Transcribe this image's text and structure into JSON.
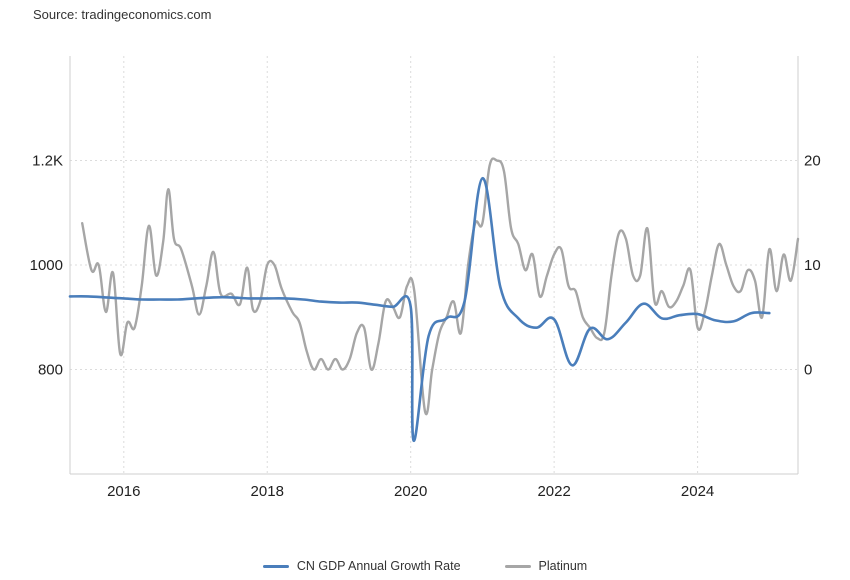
{
  "source": "Source: tradingeconomics.com",
  "colors": {
    "gdp": "#4a7ebb",
    "platinum": "#a6a6a6",
    "grid": "#dcdcdc",
    "axis": "#cfcfcf"
  },
  "chart_data": {
    "type": "line",
    "title": "",
    "legend_position": "bottom",
    "grid": true,
    "x_ticks": [
      "2016",
      "2018",
      "2020",
      "2022",
      "2024"
    ],
    "x_range": [
      2015.25,
      2025.4
    ],
    "left_axis": {
      "ticks": [
        "800",
        "1000",
        "1.2K"
      ],
      "tick_values": [
        800,
        1000,
        1200
      ],
      "range": [
        600,
        1400
      ]
    },
    "right_axis": {
      "ticks": [
        "0",
        "10",
        "20"
      ],
      "tick_values": [
        0,
        10,
        20
      ],
      "range": [
        -10,
        30
      ]
    },
    "series": [
      {
        "name": "CN GDP Annual Growth Rate",
        "axis": "right",
        "color": "#4a7ebb",
        "points": [
          [
            2015.25,
            7.0
          ],
          [
            2015.5,
            7.0
          ],
          [
            2015.75,
            6.9
          ],
          [
            2016.0,
            6.8
          ],
          [
            2016.25,
            6.7
          ],
          [
            2016.5,
            6.7
          ],
          [
            2016.75,
            6.7
          ],
          [
            2017.0,
            6.8
          ],
          [
            2017.25,
            6.9
          ],
          [
            2017.5,
            6.9
          ],
          [
            2017.75,
            6.8
          ],
          [
            2018.0,
            6.8
          ],
          [
            2018.25,
            6.8
          ],
          [
            2018.5,
            6.7
          ],
          [
            2018.75,
            6.5
          ],
          [
            2019.0,
            6.4
          ],
          [
            2019.25,
            6.4
          ],
          [
            2019.5,
            6.2
          ],
          [
            2019.75,
            6.0
          ],
          [
            2020.0,
            6.0
          ],
          [
            2020.04,
            -6.8
          ],
          [
            2020.25,
            3.2
          ],
          [
            2020.5,
            4.9
          ],
          [
            2020.75,
            6.5
          ],
          [
            2021.0,
            18.3
          ],
          [
            2021.25,
            7.9
          ],
          [
            2021.5,
            4.9
          ],
          [
            2021.75,
            4.0
          ],
          [
            2022.0,
            4.8
          ],
          [
            2022.25,
            0.4
          ],
          [
            2022.5,
            3.9
          ],
          [
            2022.75,
            2.9
          ],
          [
            2023.0,
            4.5
          ],
          [
            2023.25,
            6.3
          ],
          [
            2023.5,
            4.9
          ],
          [
            2023.75,
            5.2
          ],
          [
            2024.0,
            5.3
          ],
          [
            2024.25,
            4.7
          ],
          [
            2024.5,
            4.6
          ],
          [
            2024.75,
            5.4
          ],
          [
            2025.0,
            5.4
          ]
        ]
      },
      {
        "name": "Platinum",
        "axis": "left",
        "color": "#a6a6a6",
        "points": [
          [
            2015.42,
            1080
          ],
          [
            2015.55,
            990
          ],
          [
            2015.65,
            1000
          ],
          [
            2015.75,
            910
          ],
          [
            2015.85,
            985
          ],
          [
            2015.95,
            830
          ],
          [
            2016.05,
            890
          ],
          [
            2016.15,
            880
          ],
          [
            2016.25,
            960
          ],
          [
            2016.35,
            1075
          ],
          [
            2016.45,
            980
          ],
          [
            2016.55,
            1045
          ],
          [
            2016.62,
            1145
          ],
          [
            2016.7,
            1050
          ],
          [
            2016.8,
            1030
          ],
          [
            2016.95,
            960
          ],
          [
            2017.05,
            905
          ],
          [
            2017.15,
            960
          ],
          [
            2017.25,
            1025
          ],
          [
            2017.35,
            945
          ],
          [
            2017.5,
            945
          ],
          [
            2017.62,
            925
          ],
          [
            2017.72,
            995
          ],
          [
            2017.8,
            915
          ],
          [
            2017.9,
            930
          ],
          [
            2018.0,
            1000
          ],
          [
            2018.1,
            1000
          ],
          [
            2018.2,
            955
          ],
          [
            2018.35,
            910
          ],
          [
            2018.45,
            890
          ],
          [
            2018.55,
            835
          ],
          [
            2018.65,
            800
          ],
          [
            2018.75,
            820
          ],
          [
            2018.85,
            800
          ],
          [
            2018.95,
            820
          ],
          [
            2019.05,
            800
          ],
          [
            2019.15,
            820
          ],
          [
            2019.25,
            870
          ],
          [
            2019.35,
            880
          ],
          [
            2019.45,
            800
          ],
          [
            2019.55,
            850
          ],
          [
            2019.65,
            930
          ],
          [
            2019.75,
            920
          ],
          [
            2019.85,
            900
          ],
          [
            2019.95,
            960
          ],
          [
            2020.05,
            950
          ],
          [
            2020.2,
            720
          ],
          [
            2020.3,
            800
          ],
          [
            2020.4,
            870
          ],
          [
            2020.5,
            900
          ],
          [
            2020.6,
            930
          ],
          [
            2020.7,
            870
          ],
          [
            2020.8,
            1000
          ],
          [
            2020.9,
            1080
          ],
          [
            2021.0,
            1080
          ],
          [
            2021.1,
            1190
          ],
          [
            2021.2,
            1200
          ],
          [
            2021.3,
            1180
          ],
          [
            2021.4,
            1070
          ],
          [
            2021.5,
            1040
          ],
          [
            2021.6,
            990
          ],
          [
            2021.7,
            1020
          ],
          [
            2021.8,
            940
          ],
          [
            2021.9,
            980
          ],
          [
            2022.0,
            1020
          ],
          [
            2022.1,
            1030
          ],
          [
            2022.2,
            960
          ],
          [
            2022.3,
            950
          ],
          [
            2022.4,
            900
          ],
          [
            2022.5,
            880
          ],
          [
            2022.6,
            860
          ],
          [
            2022.7,
            870
          ],
          [
            2022.8,
            980
          ],
          [
            2022.9,
            1060
          ],
          [
            2023.0,
            1050
          ],
          [
            2023.1,
            980
          ],
          [
            2023.2,
            980
          ],
          [
            2023.3,
            1070
          ],
          [
            2023.4,
            930
          ],
          [
            2023.5,
            950
          ],
          [
            2023.6,
            920
          ],
          [
            2023.7,
            930
          ],
          [
            2023.8,
            960
          ],
          [
            2023.9,
            990
          ],
          [
            2024.0,
            880
          ],
          [
            2024.1,
            910
          ],
          [
            2024.2,
            980
          ],
          [
            2024.3,
            1040
          ],
          [
            2024.4,
            1000
          ],
          [
            2024.5,
            960
          ],
          [
            2024.6,
            950
          ],
          [
            2024.7,
            990
          ],
          [
            2024.8,
            970
          ],
          [
            2024.9,
            900
          ],
          [
            2025.0,
            1030
          ],
          [
            2025.1,
            950
          ],
          [
            2025.2,
            1020
          ],
          [
            2025.3,
            970
          ],
          [
            2025.4,
            1050
          ]
        ]
      }
    ]
  }
}
